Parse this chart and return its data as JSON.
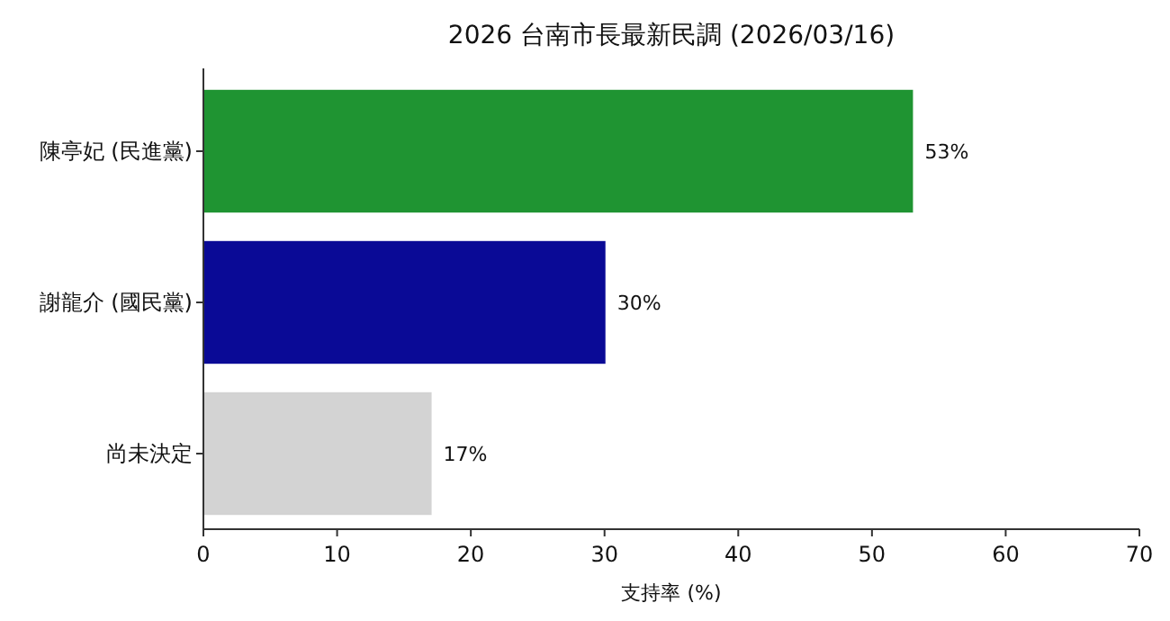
{
  "chart_data": {
    "type": "bar",
    "orientation": "horizontal",
    "title": "2026 台南市長最新民調 (2026/03/16)",
    "xlabel": "支持率 (%)",
    "categories": [
      "陳亭妃 (民進黨)",
      "謝龍介 (國民黨)",
      "尚未決定"
    ],
    "values": [
      53,
      30,
      17
    ],
    "colors": [
      "#1f9432",
      "#0a0a96",
      "#d3d3d3"
    ],
    "value_labels": [
      "53%",
      "30%",
      "17%"
    ],
    "xlim": [
      0,
      70
    ],
    "xticks": [
      0,
      10,
      20,
      30,
      40,
      50,
      60,
      70
    ]
  }
}
